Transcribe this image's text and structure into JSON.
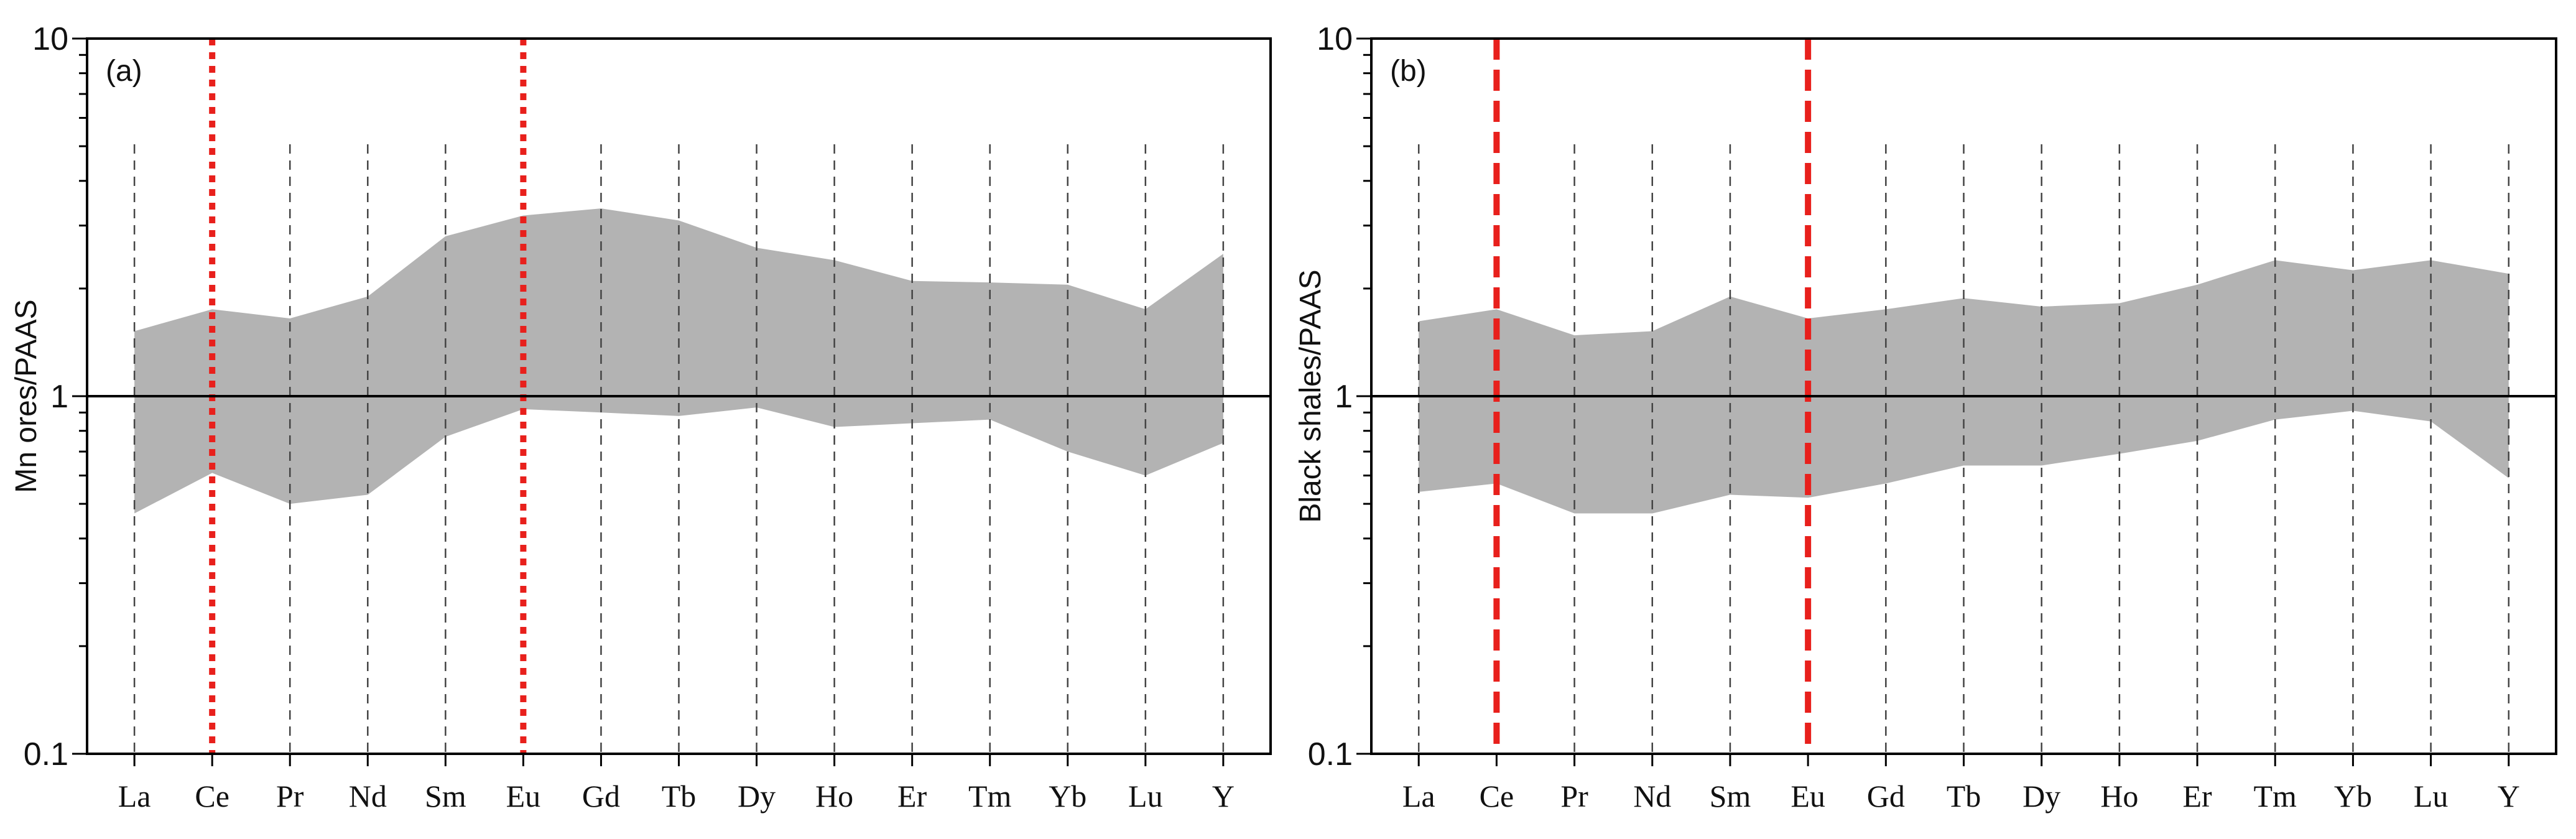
{
  "chart_data": [
    {
      "type": "area",
      "panel_label": "(a)",
      "ylabel": "Mn ores/PAAS",
      "yscale": "log",
      "ylim": [
        0.1,
        10
      ],
      "yticks": [
        "10",
        "1",
        "0.1"
      ],
      "reference_line": 1,
      "categories": [
        "La",
        "Ce",
        "Pr",
        "Nd",
        "Sm",
        "Eu",
        "Gd",
        "Tb",
        "Dy",
        "Ho",
        "Er",
        "Tm",
        "Yb",
        "Lu",
        "Y"
      ],
      "series": [
        {
          "name": "upper",
          "values": [
            1.52,
            1.75,
            1.65,
            1.9,
            2.8,
            3.2,
            3.35,
            3.1,
            2.6,
            2.4,
            2.1,
            2.08,
            2.05,
            1.75,
            2.5
          ]
        },
        {
          "name": "lower",
          "values": [
            0.47,
            0.61,
            0.5,
            0.53,
            0.77,
            0.92,
            0.9,
            0.88,
            0.93,
            0.82,
            0.84,
            0.86,
            0.7,
            0.6,
            0.74
          ]
        }
      ],
      "highlight": {
        "categories": [
          "Ce",
          "Eu"
        ],
        "color": "#e8201c",
        "style": "dotted"
      },
      "band_color": "#b3b3b3"
    },
    {
      "type": "area",
      "panel_label": "(b)",
      "ylabel": "Black shales/PAAS",
      "yscale": "log",
      "ylim": [
        0.1,
        10
      ],
      "yticks": [
        "10",
        "1",
        "0.1"
      ],
      "reference_line": 1,
      "categories": [
        "La",
        "Ce",
        "Pr",
        "Nd",
        "Sm",
        "Eu",
        "Gd",
        "Tb",
        "Dy",
        "Ho",
        "Er",
        "Tm",
        "Yb",
        "Lu",
        "Y"
      ],
      "series": [
        {
          "name": "upper",
          "values": [
            1.62,
            1.75,
            1.48,
            1.52,
            1.9,
            1.65,
            1.75,
            1.88,
            1.78,
            1.82,
            2.05,
            2.4,
            2.25,
            2.4,
            2.2
          ]
        },
        {
          "name": "lower",
          "values": [
            0.54,
            0.57,
            0.47,
            0.47,
            0.53,
            0.52,
            0.57,
            0.64,
            0.64,
            0.69,
            0.75,
            0.86,
            0.91,
            0.85,
            0.59
          ]
        }
      ],
      "highlight": {
        "categories": [
          "Ce",
          "Eu"
        ],
        "color": "#e8201c",
        "style": "dashed"
      },
      "band_color": "#b3b3b3"
    }
  ]
}
